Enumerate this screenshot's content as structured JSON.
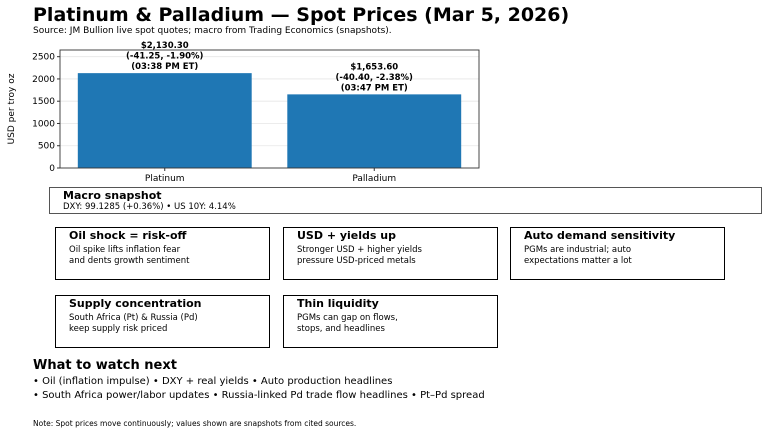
{
  "title": "Platinum & Palladium — Spot Prices (Mar 5, 2026)",
  "subtitle": "Source: JM Bullion live spot quotes; macro from Trading Economics (snapshots).",
  "chart_data": {
    "type": "bar",
    "categories": [
      "Platinum",
      "Palladium"
    ],
    "values": [
      2130.3,
      1653.6
    ],
    "data_labels": [
      "$2,130.30\n(-41.25, -1.90%)\n(03:38 PM ET)",
      "$1,653.60\n(-40.40, -2.38%)\n(03:47 PM ET)"
    ],
    "ylabel": "USD per troy oz",
    "xlabel": "",
    "ylim": [
      0,
      2650
    ],
    "yticks": [
      0,
      500,
      1000,
      1500,
      2000,
      2500
    ],
    "grid": true,
    "color": "#1f77b4"
  },
  "macro": {
    "title": "Macro snapshot",
    "text": "DXY: 99.1285 (+0.36%) • US 10Y: 4.14%"
  },
  "cards": [
    {
      "title": "Oil shock = risk-off",
      "body": "Oil spike lifts inflation fear\nand dents growth sentiment"
    },
    {
      "title": "USD + yields up",
      "body": "Stronger USD + higher yields\npressure USD-priced metals"
    },
    {
      "title": "Auto demand sensitivity",
      "body": "PGMs are industrial; auto\nexpectations matter a lot"
    },
    {
      "title": "Supply concentration",
      "body": "South Africa (Pt) & Russia (Pd)\nkeep supply risk priced"
    },
    {
      "title": "Thin liquidity",
      "body": "PGMs can gap on flows,\nstops, and headlines"
    }
  ],
  "watch": {
    "title": "What to watch next",
    "line1": "• Oil (inflation impulse) • DXY + real yields • Auto production headlines",
    "line2": "• South Africa power/labor updates • Russia-linked Pd trade flow headlines • Pt–Pd spread"
  },
  "note": "Note: Spot prices move continuously; values shown are snapshots from cited sources."
}
